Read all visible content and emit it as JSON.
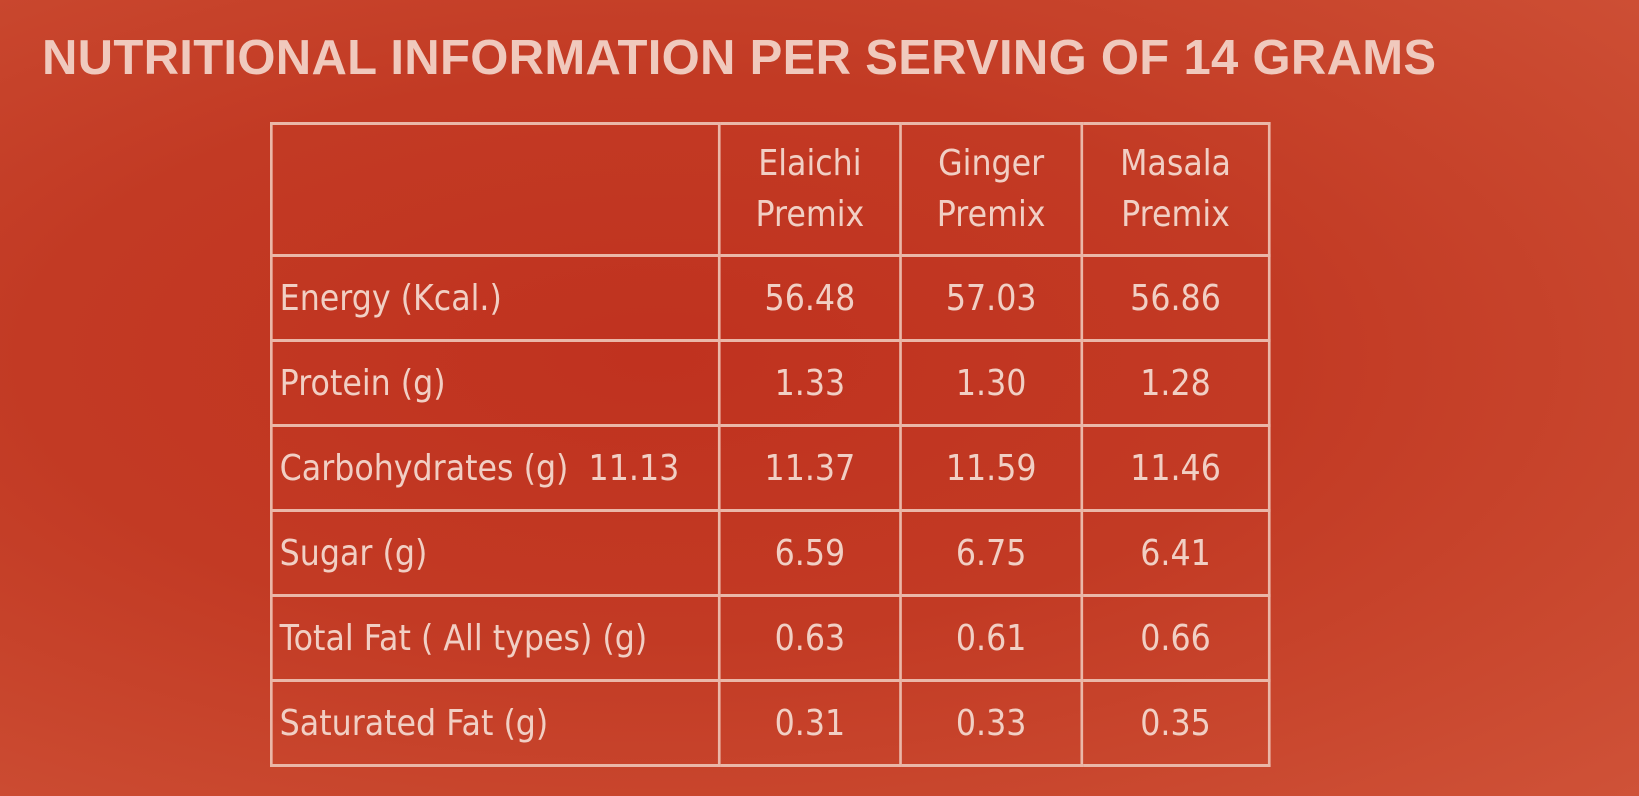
{
  "title": "NUTRITIONAL INFORMATION PER SERVING OF 14 GRAMS",
  "table": {
    "columns": [
      {
        "line1": "Elaichi",
        "line2": "Premix"
      },
      {
        "line1": "Ginger",
        "line2": "Premix"
      },
      {
        "line1": "Masala",
        "line2": "Premix"
      }
    ],
    "rows": [
      {
        "label": "Energy (Kcal.)",
        "values": [
          "56.48",
          "57.03",
          "56.86"
        ]
      },
      {
        "label": "Protein (g)",
        "values": [
          "1.33",
          "1.30",
          "1.28"
        ]
      },
      {
        "label": "Carbohydrates (g)  11.13",
        "values": [
          "11.37",
          "11.59",
          "11.46"
        ]
      },
      {
        "label": "Sugar (g)",
        "values": [
          "6.59",
          "6.75",
          "6.41"
        ]
      },
      {
        "label": "Total Fat ( All types) (g)",
        "values": [
          "0.63",
          "0.61",
          "0.66"
        ]
      },
      {
        "label": "Saturated Fat (g)",
        "values": [
          "0.31",
          "0.33",
          "0.35"
        ]
      }
    ]
  },
  "colors": {
    "background": "#c23a24",
    "text": "#f1cfc4",
    "border": "#eab7a8"
  }
}
